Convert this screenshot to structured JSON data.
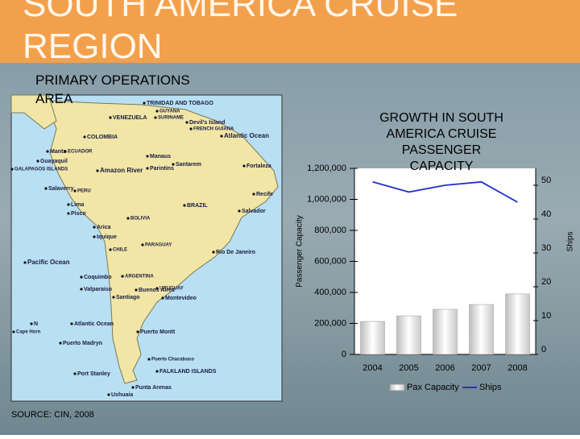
{
  "slide": {
    "title": "SOUTH AMERICA CRUISE REGION",
    "subtitle": "PRIMARY OPERATIONS AREA",
    "source": "SOURCE: CIN, 2008"
  },
  "map": {
    "labels": [
      "TRINIDAD AND TOBAGO",
      "GUYANA",
      "SURINAME",
      "VENEZUELA",
      "Devil's Island",
      "FRENCH GUIANA",
      "COLOMBIA",
      "Atlantic Ocean",
      "Manta",
      "ECUADOR",
      "Guayaquil",
      "GALAPAGOS ISLANDS",
      "Manaus",
      "Parintins",
      "Santarem",
      "Fortaleza",
      "Amazon River",
      "Recife",
      "Salaverry",
      "PERU",
      "Lima",
      "Pisco",
      "BOLIVIA",
      "BRAZIL",
      "Salvador",
      "Arica",
      "Iquique",
      "PARAGUAY",
      "CHILE",
      "Rio De Janeiro",
      "Pacific Ocean",
      "Coquimbo",
      "ARGENTINA",
      "Valparaiso",
      "Santiago",
      "Buenos Aires",
      "URUGUAY",
      "Montevideo",
      "N",
      "Atlantic Ocean",
      "Puerto Montt",
      "Puerto Madryn",
      "Puerto Chacabuco",
      "FALKLAND ISLANDS",
      "Port Stanley",
      "Punta Arenas",
      "Ushuaia",
      "Cape Horn"
    ]
  },
  "chart_data": {
    "type": "bar-line",
    "title": "GROWTH IN SOUTH AMERICA CRUISE PASSENGER CAPACITY",
    "categories": [
      "2004",
      "2005",
      "2006",
      "2007",
      "2008"
    ],
    "y_label": "Passenger Capacity",
    "y2_label": "Ships",
    "series": [
      {
        "name": "Pax Capacity",
        "type": "bar",
        "color": "#e0e0e0",
        "values": [
          213000,
          249000,
          291000,
          322000,
          390000
        ]
      },
      {
        "name": "Ships",
        "type": "line",
        "axis": "y2",
        "color": "#1f2fd0",
        "values": [
          51,
          48,
          50,
          51,
          45
        ]
      }
    ],
    "ylim": [
      0,
      1200000
    ],
    "yticks": [
      0,
      {
        "value": 200000,
        "label": "200,000"
      },
      {
        "value": 400000,
        "label": "400,000"
      },
      {
        "value": 600000,
        "label": "600,000"
      },
      {
        "value": 800000,
        "label": "800,000"
      },
      {
        "value": 1000000,
        "label": "1,000,000"
      },
      {
        "value": 1200000,
        "label": "1,200,000"
      }
    ],
    "y2lim": [
      0,
      55
    ],
    "y2ticks": [
      0,
      10,
      20,
      30,
      40,
      50
    ],
    "legend": "bottom"
  }
}
